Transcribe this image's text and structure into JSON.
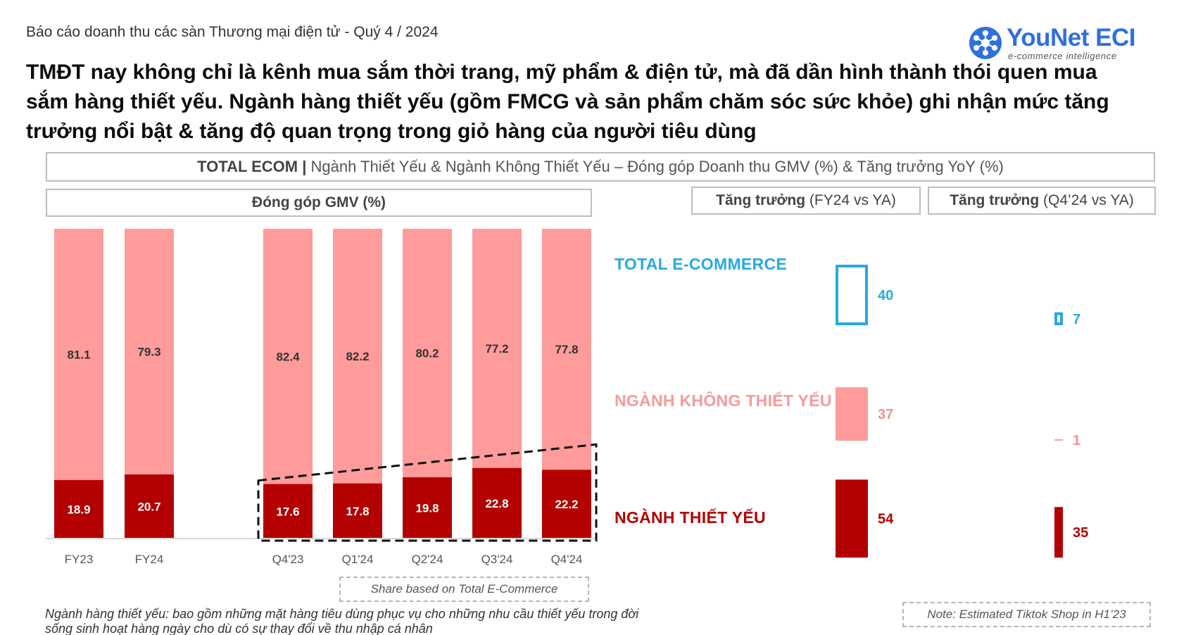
{
  "header": {
    "subtitle": "Báo cáo doanh thu các sàn Thương mại điện tử - Quý 4 / 2024",
    "headline": "TMĐT nay không chỉ là kênh mua sắm thời trang, mỹ phẩm & điện tử, mà đã dần hình thành thói quen mua sắm hàng thiết yếu. Ngành hàng thiết yếu (gồm FMCG và sản phẩm chăm sóc sức khỏe) ghi nhận mức tăng trưởng nổi bật & tăng độ quan trọng trong giỏ hàng của người tiêu dùng"
  },
  "logo": {
    "name": "YouNet ECI",
    "tagline": "e-commerce intelligence",
    "icon": "network-icon"
  },
  "banner": {
    "bold": "TOTAL ECOM |",
    "rest": " Ngành Thiết Yếu & Ngành Không Thiết Yếu – Đóng góp Doanh thu GMV (%) & Tăng trưởng YoY (%)"
  },
  "panels": {
    "gmv_title": "Đóng góp GMV (%)",
    "growth_fy_bold": "Tăng trưởng",
    "growth_fy_rest": " (FY24 vs YA)",
    "growth_q_bold": "Tăng trưởng",
    "growth_q_rest": " (Q4’24 vs YA)"
  },
  "segments": {
    "total": "TOTAL E-COMMERCE",
    "non_essential": "NGÀNH KHÔNG THIẾT YẾU",
    "essential": "NGÀNH THIẾT YẾU"
  },
  "notes": {
    "share": "Share based on Total E-Commerce",
    "tiktok": "Note: Estimated Tiktok Shop in H1’23",
    "footnote": "Ngành hàng thiết yếu: bao gồm những mặt hàng tiêu dùng phục vụ cho những nhu cầu thiết yếu trong đời sống sinh hoạt hàng ngày cho dù có sự thay đổi về thu nhập cá nhân"
  },
  "colors": {
    "essential": "#b30000",
    "non_essential": "#ff9b9b",
    "total": "#29a9e0"
  },
  "chart_data": [
    {
      "type": "bar",
      "stacked": true,
      "title": "Đóng góp GMV (%)",
      "categories": [
        "FY23",
        "FY24",
        "Q4'23",
        "Q1'24",
        "Q2'24",
        "Q3'24",
        "Q4'24"
      ],
      "series": [
        {
          "name": "NGÀNH THIẾT YẾU",
          "values": [
            18.9,
            20.7,
            17.6,
            17.8,
            19.8,
            22.8,
            22.2
          ]
        },
        {
          "name": "NGÀNH KHÔNG THIẾT YẾU",
          "values": [
            81.1,
            79.3,
            82.4,
            82.2,
            80.2,
            77.2,
            77.8
          ]
        }
      ],
      "ylim": [
        0,
        100
      ]
    },
    {
      "type": "bar",
      "title": "Tăng trưởng (FY24 vs YA)",
      "categories": [
        "TOTAL E-COMMERCE",
        "NGÀNH KHÔNG THIẾT YẾU",
        "NGÀNH THIẾT YẾU"
      ],
      "values": [
        40,
        37,
        54
      ]
    },
    {
      "type": "bar",
      "title": "Tăng trưởng (Q4’24 vs YA)",
      "categories": [
        "TOTAL E-COMMERCE",
        "NGÀNH KHÔNG THIẾT YẾU",
        "NGÀNH THIẾT YẾU"
      ],
      "values": [
        7,
        1,
        35
      ]
    }
  ]
}
